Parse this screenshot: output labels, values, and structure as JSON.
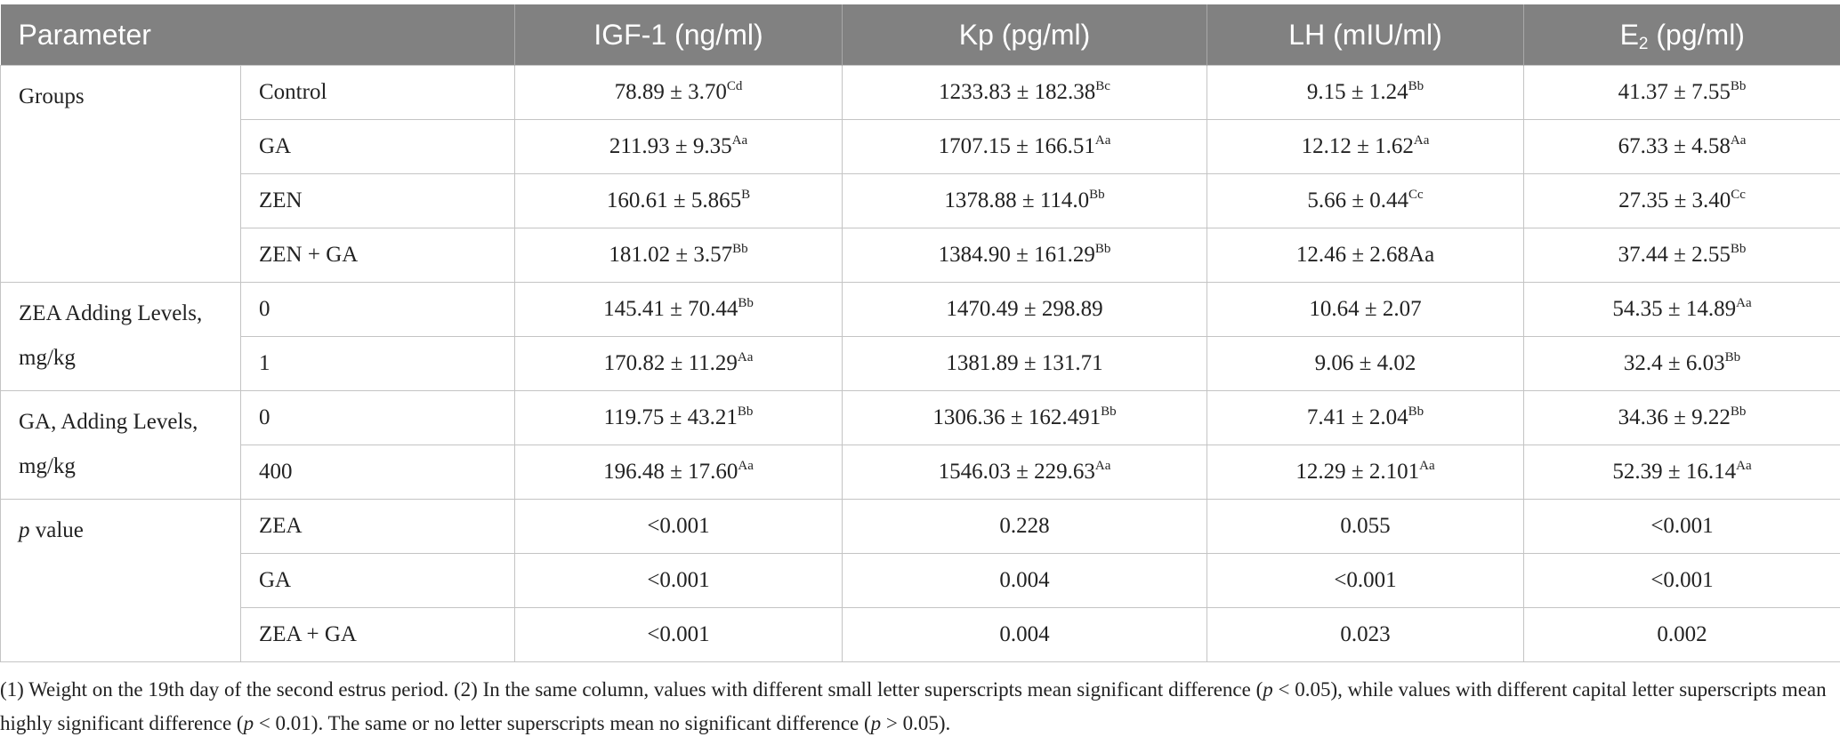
{
  "table": {
    "header": [
      "Parameter",
      "IGF-1 (ng/ml)",
      "Kp (pg/ml)",
      "LH (mIU/ml)",
      {
        "text": "E",
        "sub": "2",
        "after": " (pg/ml)"
      }
    ],
    "groups": [
      {
        "label": "Groups",
        "rows": [
          {
            "label": "Control",
            "cells": [
              {
                "text": "78.89 ± 3.70",
                "sup": "Cd"
              },
              {
                "text": "1233.83 ± 182.38",
                "sup": "Bc"
              },
              {
                "text": "9.15 ± 1.24",
                "sup": "Bb"
              },
              {
                "text": "41.37 ± 7.55",
                "sup": "Bb"
              }
            ]
          },
          {
            "label": "GA",
            "cells": [
              {
                "text": "211.93 ± 9.35",
                "sup": "Aa"
              },
              {
                "text": "1707.15 ± 166.51",
                "sup": "Aa"
              },
              {
                "text": "12.12 ± 1.62",
                "sup": "Aa"
              },
              {
                "text": "67.33 ± 4.58",
                "sup": "Aa"
              }
            ]
          },
          {
            "label": "ZEN",
            "cells": [
              {
                "text": "160.61 ± 5.865",
                "sup": "B"
              },
              {
                "text": "1378.88 ± 114.0",
                "sup": "Bb"
              },
              {
                "text": "5.66 ± 0.44",
                "sup": "Cc"
              },
              {
                "text": "27.35 ± 3.40",
                "sup": "Cc"
              }
            ]
          },
          {
            "label": "ZEN + GA",
            "cells": [
              {
                "text": "181.02 ± 3.57",
                "sup": "Bb"
              },
              {
                "text": "1384.90 ± 161.29",
                "sup": "Bb"
              },
              "12.46 ± 2.68Aa",
              {
                "text": "37.44 ± 2.55",
                "sup": "Bb"
              }
            ]
          }
        ]
      },
      {
        "label": "ZEA Adding Levels, mg/kg",
        "rows": [
          {
            "label": "0",
            "cells": [
              {
                "text": "145.41 ± 70.44",
                "sup": "Bb"
              },
              "1470.49 ± 298.89",
              "10.64 ± 2.07",
              {
                "text": "54.35 ± 14.89",
                "sup": "Aa"
              }
            ]
          },
          {
            "label": "1",
            "cells": [
              {
                "text": "170.82 ± 11.29",
                "sup": "Aa"
              },
              "1381.89 ± 131.71",
              "9.06 ± 4.02",
              {
                "text": "32.4 ± 6.03",
                "sup": "Bb"
              }
            ]
          }
        ]
      },
      {
        "label": "GA, Adding Levels, mg/kg",
        "rows": [
          {
            "label": "0",
            "cells": [
              {
                "text": "119.75 ± 43.21",
                "sup": "Bb"
              },
              {
                "text": "1306.36 ± 162.491",
                "sup": "Bb"
              },
              {
                "text": "7.41 ± 2.04",
                "sup": "Bb"
              },
              {
                "text": "34.36 ± 9.22",
                "sup": "Bb"
              }
            ]
          },
          {
            "label": "400",
            "cells": [
              {
                "text": "196.48 ± 17.60",
                "sup": "Aa"
              },
              {
                "text": "1546.03 ± 229.63",
                "sup": "Aa"
              },
              {
                "text": "12.29 ± 2.101",
                "sup": "Aa"
              },
              {
                "text": "52.39 ± 16.14",
                "sup": "Aa"
              }
            ]
          }
        ]
      },
      {
        "label": [
          {
            "text": "p",
            "italic": true
          },
          " value"
        ],
        "rows": [
          {
            "label": "ZEA",
            "cells": [
              "<0.001",
              "0.228",
              "0.055",
              "<0.001"
            ]
          },
          {
            "label": "GA",
            "cells": [
              "<0.001",
              "0.004",
              "<0.001",
              "<0.001"
            ]
          },
          {
            "label": "ZEA + GA",
            "cells": [
              "<0.001",
              "0.004",
              "0.023",
              "0.002"
            ]
          }
        ]
      }
    ]
  },
  "footnote": [
    "(1) Weight on the 19th day of the second estrus period. (2) In the same column, values with different small letter superscripts mean significant difference (",
    {
      "text": "p",
      "italic": true
    },
    " < 0.05), while values with different capital letter superscripts mean highly significant difference (",
    {
      "text": "p",
      "italic": true
    },
    " < 0.01). The same or no letter superscripts mean no significant difference (",
    {
      "text": "p",
      "italic": true
    },
    " > 0.05)."
  ]
}
